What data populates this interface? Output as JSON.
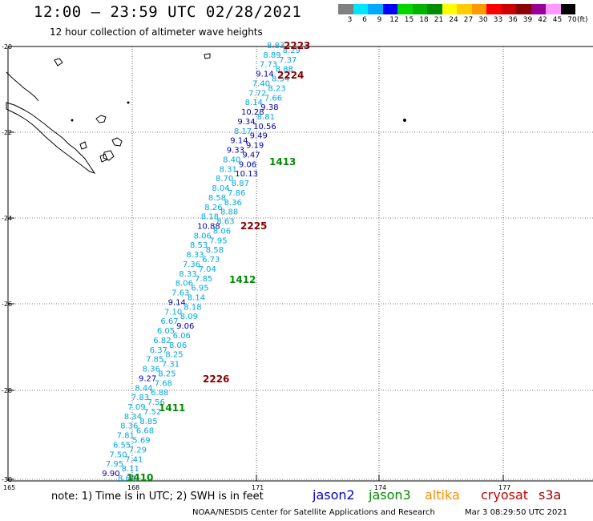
{
  "title": "12:00 – 23:59 UTC 02/28/2021",
  "subtitle": "12 hour collection of altimeter wave heights",
  "colorbar": {
    "colors": [
      "#808080",
      "#00e5ff",
      "#00a8ff",
      "#0000ff",
      "#00d700",
      "#00b400",
      "#008c00",
      "#ffff00",
      "#ffcc00",
      "#ff9900",
      "#ff0000",
      "#cc0000",
      "#8b0000",
      "#990099",
      "#ff99ff",
      "#000000"
    ],
    "labels": [
      "3",
      "6",
      "9",
      "12",
      "15",
      "18",
      "21",
      "24",
      "27",
      "30",
      "33",
      "36",
      "39",
      "42",
      "45",
      "70"
    ],
    "unit": "(ft)"
  },
  "axes": {
    "lat_labels": [
      "-20",
      "-22",
      "-24",
      "-26",
      "-28",
      "-30"
    ],
    "lon_labels": [
      "165",
      "168",
      "171",
      "174",
      "177"
    ]
  },
  "colors": {
    "jason2": "#0000cc",
    "jason3": "#008c00",
    "altika": "#ff8c00",
    "cryosat": "#cc0000",
    "s3a": "#990000",
    "swh_light": "#00a8e0",
    "swh_dark": "#0000aa",
    "swh_maroon": "#880000",
    "grid": "#000000"
  },
  "track_times": [
    {
      "label": "2223",
      "color": "#880000"
    },
    {
      "label": "2224",
      "color": "#880000"
    },
    {
      "label": "1413",
      "color": "#008c00"
    },
    {
      "label": "2225",
      "color": "#880000"
    },
    {
      "label": "1412",
      "color": "#008c00"
    },
    {
      "label": "2226",
      "color": "#880000"
    },
    {
      "label": "1411",
      "color": "#008c00"
    },
    {
      "label": "1410",
      "color": "#008c00"
    }
  ],
  "observations": [
    {
      "v": "8.83",
      "c": "#00a8e0"
    },
    {
      "v": "8.29",
      "c": "#00a8e0"
    },
    {
      "v": "8.89",
      "c": "#00a8e0"
    },
    {
      "v": "7.37",
      "c": "#00a8e0"
    },
    {
      "v": "7.73",
      "c": "#00a8e0"
    },
    {
      "v": "8.88",
      "c": "#00a8e0"
    },
    {
      "v": "9.14",
      "c": "#0000aa"
    },
    {
      "v": "8.54",
      "c": "#00a8e0"
    },
    {
      "v": "7.40",
      "c": "#00a8e0"
    },
    {
      "v": "8.23",
      "c": "#00a8e0"
    },
    {
      "v": "7.72",
      "c": "#00a8e0"
    },
    {
      "v": "7.66",
      "c": "#00a8e0"
    },
    {
      "v": "8.14",
      "c": "#00a8e0"
    },
    {
      "v": "9.38",
      "c": "#0000aa"
    },
    {
      "v": "10.28",
      "c": "#0000aa"
    },
    {
      "v": "8.81",
      "c": "#00a8e0"
    },
    {
      "v": "9.34",
      "c": "#0000aa"
    },
    {
      "v": "10.56",
      "c": "#0000aa"
    },
    {
      "v": "8.17",
      "c": "#00a8e0"
    },
    {
      "v": "9.49",
      "c": "#0000aa"
    },
    {
      "v": "9.14",
      "c": "#0000aa"
    },
    {
      "v": "9.19",
      "c": "#0000aa"
    },
    {
      "v": "9.33",
      "c": "#0000aa"
    },
    {
      "v": "9.47",
      "c": "#0000aa"
    },
    {
      "v": "8.40",
      "c": "#00a8e0"
    },
    {
      "v": "9.06",
      "c": "#0000aa"
    },
    {
      "v": "8.31",
      "c": "#00a8e0"
    },
    {
      "v": "10.13",
      "c": "#0000aa"
    },
    {
      "v": "8.70",
      "c": "#00a8e0"
    },
    {
      "v": "8.87",
      "c": "#00a8e0"
    },
    {
      "v": "8.04",
      "c": "#00a8e0"
    },
    {
      "v": "7.86",
      "c": "#00a8e0"
    },
    {
      "v": "8.58",
      "c": "#00a8e0"
    },
    {
      "v": "8.36",
      "c": "#00a8e0"
    },
    {
      "v": "8.26",
      "c": "#00a8e0"
    },
    {
      "v": "8.88",
      "c": "#00a8e0"
    },
    {
      "v": "8.18",
      "c": "#00a8e0"
    },
    {
      "v": "8.63",
      "c": "#00a8e0"
    },
    {
      "v": "10.88",
      "c": "#0000aa"
    },
    {
      "v": "8.06",
      "c": "#00a8e0"
    },
    {
      "v": "8.06",
      "c": "#00a8e0"
    },
    {
      "v": "7.95",
      "c": "#00a8e0"
    },
    {
      "v": "8.53",
      "c": "#00a8e0"
    },
    {
      "v": "8.58",
      "c": "#00a8e0"
    },
    {
      "v": "8.33",
      "c": "#00a8e0"
    },
    {
      "v": "6.73",
      "c": "#00a8e0"
    },
    {
      "v": "7.36",
      "c": "#00a8e0"
    },
    {
      "v": "7.04",
      "c": "#00a8e0"
    },
    {
      "v": "8.33",
      "c": "#00a8e0"
    },
    {
      "v": "7.85",
      "c": "#00a8e0"
    },
    {
      "v": "8.06",
      "c": "#00a8e0"
    },
    {
      "v": "6.95",
      "c": "#00a8e0"
    },
    {
      "v": "7.63",
      "c": "#00a8e0"
    },
    {
      "v": "8.14",
      "c": "#00a8e0"
    },
    {
      "v": "9.14",
      "c": "#0000aa"
    },
    {
      "v": "8.18",
      "c": "#00a8e0"
    },
    {
      "v": "7.10",
      "c": "#00a8e0"
    },
    {
      "v": "8.09",
      "c": "#00a8e0"
    },
    {
      "v": "6.67",
      "c": "#00a8e0"
    },
    {
      "v": "9.06",
      "c": "#0000aa"
    },
    {
      "v": "6.05",
      "c": "#00a8e0"
    },
    {
      "v": "6.06",
      "c": "#00a8e0"
    },
    {
      "v": "6.82",
      "c": "#00a8e0"
    },
    {
      "v": "8.06",
      "c": "#00a8e0"
    },
    {
      "v": "6.37",
      "c": "#00a8e0"
    },
    {
      "v": "8.25",
      "c": "#00a8e0"
    },
    {
      "v": "7.85",
      "c": "#00a8e0"
    },
    {
      "v": "7.31",
      "c": "#00a8e0"
    },
    {
      "v": "8.36",
      "c": "#00a8e0"
    },
    {
      "v": "8.25",
      "c": "#00a8e0"
    },
    {
      "v": "9.27",
      "c": "#0000aa"
    },
    {
      "v": "7.68",
      "c": "#00a8e0"
    },
    {
      "v": "8.44",
      "c": "#00a8e0"
    },
    {
      "v": "6.88",
      "c": "#00a8e0"
    },
    {
      "v": "7.83",
      "c": "#00a8e0"
    },
    {
      "v": "7.56",
      "c": "#00a8e0"
    },
    {
      "v": "7.09",
      "c": "#00a8e0"
    },
    {
      "v": "7.52",
      "c": "#00a8e0"
    },
    {
      "v": "8.34",
      "c": "#00a8e0"
    },
    {
      "v": "8.85",
      "c": "#00a8e0"
    },
    {
      "v": "8.36",
      "c": "#00a8e0"
    },
    {
      "v": "6.68",
      "c": "#00a8e0"
    },
    {
      "v": "7.81",
      "c": "#00a8e0"
    },
    {
      "v": "5.69",
      "c": "#00a8e0"
    },
    {
      "v": "6.55",
      "c": "#00a8e0"
    },
    {
      "v": "7.29",
      "c": "#00a8e0"
    },
    {
      "v": "7.50",
      "c": "#00a8e0"
    },
    {
      "v": "7.41",
      "c": "#00a8e0"
    },
    {
      "v": "7.95",
      "c": "#00a8e0"
    },
    {
      "v": "8.11",
      "c": "#00a8e0"
    },
    {
      "v": "9.90",
      "c": "#0000aa"
    },
    {
      "v": "8.64",
      "c": "#00a8e0"
    }
  ],
  "footer": {
    "note": "note: 1) Time is in UTC; 2) SWH is in feet",
    "jason2": "jason2",
    "jason3": "jason3",
    "altika": "altika",
    "cryosat": "cryosat",
    "s3a": "s3a",
    "credit": "NOAA/NESDIS Center for Satellite Applications and Research",
    "timestamp": "Mar  3 08:29:50 UTC 2021"
  }
}
